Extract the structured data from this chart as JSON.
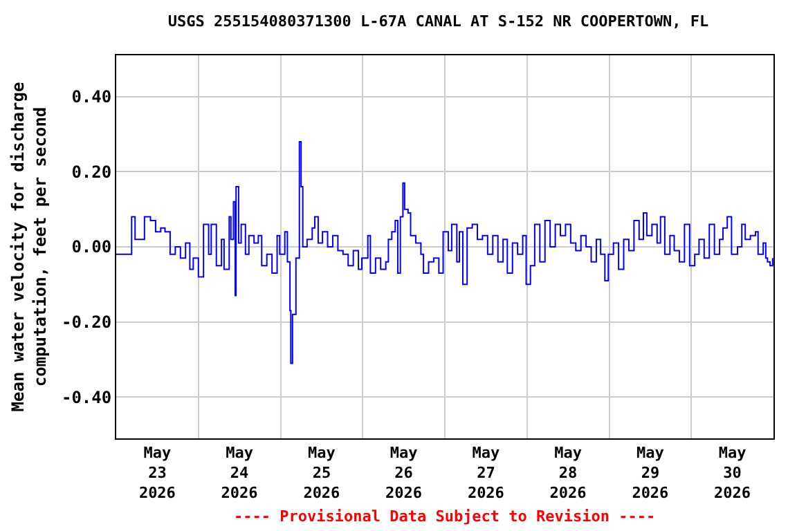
{
  "chart_data": {
    "type": "step",
    "title": "USGS 255154080371300 L-67A CANAL AT S-152 NR COOPERTOWN, FL",
    "ylabel": "Mean water velocity for discharge\ncomputation, feet per second",
    "annotations": [
      "---- Provisional Data Subject to Revision ----"
    ],
    "x": [
      "2026-05-23T00:00",
      "2026-05-23T04:00",
      "2026-05-23T04:30",
      "2026-05-23T05:30",
      "2026-05-23T08:15",
      "2026-05-23T10:00",
      "2026-05-23T11:30",
      "2026-05-23T13:00",
      "2026-05-23T14:15",
      "2026-05-23T15:45",
      "2026-05-23T17:15",
      "2026-05-23T18:45",
      "2026-05-23T20:15",
      "2026-05-23T21:30",
      "2026-05-23T22:30",
      "2026-05-24T00:00",
      "2026-05-24T01:30",
      "2026-05-24T03:00",
      "2026-05-24T03:45",
      "2026-05-24T05:15",
      "2026-05-24T06:45",
      "2026-05-24T07:30",
      "2026-05-24T09:00",
      "2026-05-24T09:30",
      "2026-05-24T10:15",
      "2026-05-24T10:45",
      "2026-05-24T11:00",
      "2026-05-24T11:45",
      "2026-05-24T12:30",
      "2026-05-24T13:45",
      "2026-05-24T14:45",
      "2026-05-24T16:15",
      "2026-05-24T17:30",
      "2026-05-24T18:30",
      "2026-05-24T20:00",
      "2026-05-24T21:30",
      "2026-05-24T23:00",
      "2026-05-24T23:45",
      "2026-05-25T01:15",
      "2026-05-25T02:00",
      "2026-05-25T02:45",
      "2026-05-25T03:00",
      "2026-05-25T03:30",
      "2026-05-25T04:30",
      "2026-05-25T05:30",
      "2026-05-25T06:00",
      "2026-05-25T06:30",
      "2026-05-25T07:45",
      "2026-05-25T09:15",
      "2026-05-25T10:00",
      "2026-05-25T11:00",
      "2026-05-25T12:15",
      "2026-05-25T13:45",
      "2026-05-25T15:15",
      "2026-05-25T16:45",
      "2026-05-25T18:15",
      "2026-05-25T19:45",
      "2026-05-25T21:15",
      "2026-05-25T22:45",
      "2026-05-25T23:45",
      "2026-05-26T01:30",
      "2026-05-26T02:15",
      "2026-05-26T03:45",
      "2026-05-26T05:15",
      "2026-05-26T06:45",
      "2026-05-26T07:30",
      "2026-05-26T08:30",
      "2026-05-26T09:30",
      "2026-05-26T10:15",
      "2026-05-26T11:00",
      "2026-05-26T11:45",
      "2026-05-26T12:15",
      "2026-05-26T13:15",
      "2026-05-26T14:00",
      "2026-05-26T15:30",
      "2026-05-26T17:00",
      "2026-05-26T17:45",
      "2026-05-26T19:15",
      "2026-05-26T20:45",
      "2026-05-26T22:15",
      "2026-05-26T23:30",
      "2026-05-27T01:00",
      "2026-05-27T02:00",
      "2026-05-27T03:30",
      "2026-05-27T04:15",
      "2026-05-27T05:15",
      "2026-05-27T06:30",
      "2026-05-27T08:00",
      "2026-05-27T09:30",
      "2026-05-27T11:00",
      "2026-05-27T12:30",
      "2026-05-27T14:00",
      "2026-05-27T15:30",
      "2026-05-27T17:00",
      "2026-05-27T18:15",
      "2026-05-27T19:45",
      "2026-05-27T21:15",
      "2026-05-27T22:45",
      "2026-05-27T23:45",
      "2026-05-28T01:00",
      "2026-05-28T02:15",
      "2026-05-28T03:45",
      "2026-05-28T05:15",
      "2026-05-28T06:45",
      "2026-05-28T08:15",
      "2026-05-28T09:45",
      "2026-05-28T11:15",
      "2026-05-28T12:45",
      "2026-05-28T14:15",
      "2026-05-28T15:45",
      "2026-05-28T17:15",
      "2026-05-28T18:45",
      "2026-05-28T20:15",
      "2026-05-28T21:30",
      "2026-05-28T22:45",
      "2026-05-28T23:45",
      "2026-05-29T01:15",
      "2026-05-29T02:45",
      "2026-05-29T04:15",
      "2026-05-29T05:45",
      "2026-05-29T07:15",
      "2026-05-29T08:45",
      "2026-05-29T10:00",
      "2026-05-29T11:00",
      "2026-05-29T12:30",
      "2026-05-29T14:00",
      "2026-05-29T15:00",
      "2026-05-29T16:15",
      "2026-05-29T17:45",
      "2026-05-29T19:00",
      "2026-05-29T20:30",
      "2026-05-29T22:00",
      "2026-05-29T23:30",
      "2026-05-30T01:00",
      "2026-05-30T02:15",
      "2026-05-30T03:45",
      "2026-05-30T05:15",
      "2026-05-30T06:45",
      "2026-05-30T08:15",
      "2026-05-30T09:15",
      "2026-05-30T10:30",
      "2026-05-30T11:45",
      "2026-05-30T13:30",
      "2026-05-30T14:45",
      "2026-05-30T15:45",
      "2026-05-30T17:15",
      "2026-05-30T18:45",
      "2026-05-30T19:30",
      "2026-05-30T21:00",
      "2026-05-30T21:45",
      "2026-05-30T22:15",
      "2026-05-30T23:00",
      "2026-05-30T23:45"
    ],
    "series": [
      {
        "color": "#0000ff",
        "values": [
          -0.02,
          -0.02,
          0.08,
          0.02,
          0.08,
          0.07,
          0.04,
          0.05,
          0.04,
          -0.02,
          0.0,
          -0.03,
          0.01,
          -0.06,
          -0.03,
          -0.08,
          0.06,
          -0.02,
          0.06,
          -0.05,
          0.02,
          -0.06,
          0.08,
          0.02,
          0.12,
          -0.13,
          0.16,
          0.01,
          0.06,
          -0.02,
          0.03,
          0.01,
          0.03,
          -0.05,
          -0.02,
          -0.07,
          0.03,
          -0.02,
          0.04,
          -0.04,
          -0.17,
          -0.31,
          -0.18,
          -0.03,
          0.28,
          0.16,
          0.0,
          0.02,
          0.05,
          0.08,
          0.01,
          0.04,
          0.0,
          0.03,
          -0.01,
          -0.02,
          -0.05,
          -0.01,
          -0.06,
          -0.03,
          0.03,
          -0.07,
          -0.03,
          -0.06,
          -0.04,
          0.02,
          0.04,
          0.07,
          -0.07,
          0.08,
          0.17,
          0.1,
          0.09,
          0.03,
          0.01,
          -0.02,
          -0.07,
          -0.04,
          -0.03,
          -0.07,
          0.04,
          -0.01,
          0.06,
          -0.04,
          0.04,
          -0.1,
          0.05,
          0.06,
          0.02,
          0.03,
          -0.02,
          0.03,
          -0.04,
          0.02,
          -0.07,
          0.01,
          -0.02,
          0.03,
          -0.1,
          -0.05,
          0.06,
          -0.04,
          0.07,
          0.0,
          0.06,
          0.03,
          0.06,
          0.01,
          -0.01,
          0.03,
          0.0,
          -0.04,
          0.02,
          -0.02,
          -0.09,
          -0.02,
          0.01,
          -0.06,
          0.02,
          -0.01,
          0.07,
          0.02,
          0.09,
          0.03,
          0.06,
          0.01,
          0.08,
          -0.02,
          0.03,
          -0.01,
          -0.04,
          0.06,
          -0.05,
          -0.02,
          0.02,
          -0.03,
          0.06,
          -0.02,
          0.02,
          0.05,
          0.08,
          -0.02,
          0.0,
          0.06,
          0.02,
          0.03,
          0.04,
          -0.02,
          0.01,
          -0.03,
          -0.04,
          -0.05,
          -0.03
        ]
      }
    ],
    "xlim": [
      "2026-05-23T00:00",
      "2026-05-31T00:00"
    ],
    "xticks": [
      {
        "value": "2026-05-23T12:00",
        "label": "May\n23\n2026"
      },
      {
        "value": "2026-05-24T12:00",
        "label": "May\n24\n2026"
      },
      {
        "value": "2026-05-25T12:00",
        "label": "May\n25\n2026"
      },
      {
        "value": "2026-05-26T12:00",
        "label": "May\n26\n2026"
      },
      {
        "value": "2026-05-27T12:00",
        "label": "May\n27\n2026"
      },
      {
        "value": "2026-05-28T12:00",
        "label": "May\n28\n2026"
      },
      {
        "value": "2026-05-29T12:00",
        "label": "May\n29\n2026"
      },
      {
        "value": "2026-05-30T12:00",
        "label": "May\n30\n2026"
      }
    ],
    "ylim": [
      -0.51,
      0.51
    ],
    "yticks": [
      {
        "value": -0.4,
        "label": "-0.40"
      },
      {
        "value": -0.2,
        "label": "-0.20"
      },
      {
        "value": 0,
        "label": "0.00"
      },
      {
        "value": 0.2,
        "label": "0.20"
      },
      {
        "value": 0.4,
        "label": "0.40"
      }
    ],
    "grid": true
  }
}
